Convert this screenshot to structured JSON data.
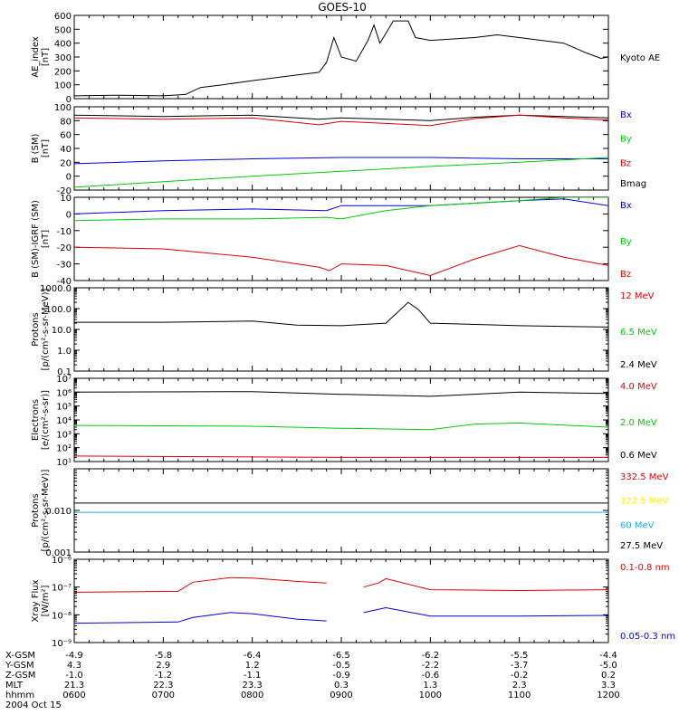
{
  "title": "GOES-10",
  "colors": {
    "black": "#000000",
    "red": "#dd0000",
    "green": "#00cc00",
    "blue": "#0000dd",
    "yellow": "#ffee00",
    "cyan": "#22aadd"
  },
  "footer": {
    "rows": [
      {
        "label": "X-GSM",
        "values": [
          "-4.9",
          "-5.8",
          "-6.4",
          "-6.5",
          "-6.2",
          "-5.5",
          "-4.4"
        ]
      },
      {
        "label": "Y-GSM",
        "values": [
          "4.3",
          "2.9",
          "1.2",
          "-0.5",
          "-2.2",
          "-3.7",
          "-5.0"
        ]
      },
      {
        "label": "Z-GSM",
        "values": [
          "-1.0",
          "-1.2",
          "-1.1",
          "-0.9",
          "-0.6",
          "-0.2",
          "0.2"
        ]
      },
      {
        "label": "MLT",
        "values": [
          "21.3",
          "22.3",
          "23.3",
          "0.3",
          "1.3",
          "2.3",
          "3.3"
        ]
      },
      {
        "label": "hhmm",
        "values": [
          "0600",
          "0700",
          "0800",
          "0900",
          "1000",
          "1100",
          "1200"
        ]
      }
    ],
    "date": "2004 Oct 15"
  },
  "chart_data": [
    {
      "type": "line",
      "ylabel": [
        "AE_index",
        "[nT]"
      ],
      "scale": "linear",
      "ylim": [
        0,
        600
      ],
      "ticks": [
        0,
        100,
        200,
        300,
        400,
        500,
        600
      ],
      "tick_labels": [
        "0",
        "100",
        "200",
        "300",
        "400",
        "500",
        "600"
      ],
      "xlim": [
        "0600",
        "1200"
      ],
      "legend": [
        {
          "name": "Kyoto AE",
          "color": "#000000"
        }
      ],
      "series": [
        {
          "color": "#000000",
          "points": [
            [
              "0600",
              20
            ],
            [
              "0630",
              25
            ],
            [
              "0700",
              20
            ],
            [
              "0715",
              30
            ],
            [
              "0725",
              80
            ],
            [
              "0740",
              100
            ],
            [
              "0800",
              130
            ],
            [
              "0815",
              150
            ],
            [
              "0830",
              170
            ],
            [
              "0845",
              190
            ],
            [
              "0850",
              260
            ],
            [
              "0855",
              440
            ],
            [
              "0900",
              300
            ],
            [
              "0910",
              270
            ],
            [
              "0918",
              420
            ],
            [
              "0922",
              530
            ],
            [
              "0926",
              400
            ],
            [
              "0930",
              470
            ],
            [
              "0935",
              560
            ],
            [
              "0945",
              560
            ],
            [
              "0950",
              440
            ],
            [
              "1000",
              420
            ],
            [
              "1030",
              440
            ],
            [
              "1045",
              460
            ],
            [
              "1100",
              440
            ],
            [
              "1130",
              400
            ],
            [
              "1145",
              330
            ],
            [
              "1155",
              290
            ],
            [
              "1200",
              300
            ]
          ]
        }
      ]
    },
    {
      "type": "line",
      "ylabel": [
        "B (SM)",
        "[nT]"
      ],
      "scale": "linear",
      "ylim": [
        -20,
        100
      ],
      "ticks": [
        -20,
        0,
        20,
        40,
        60,
        80,
        100
      ],
      "tick_labels": [
        "-20",
        "0",
        "20",
        "40",
        "60",
        "80",
        "100"
      ],
      "xlim": [
        "0600",
        "1200"
      ],
      "legend": [
        {
          "name": "Bx",
          "color": "#0000dd"
        },
        {
          "name": "By",
          "color": "#00cc00"
        },
        {
          "name": "Bz",
          "color": "#dd0000"
        },
        {
          "name": "Bmag",
          "color": "#000000"
        }
      ],
      "series": [
        {
          "color": "#000000",
          "points": [
            [
              "0600",
              88
            ],
            [
              "0700",
              86
            ],
            [
              "0800",
              88
            ],
            [
              "0845",
              82
            ],
            [
              "0900",
              84
            ],
            [
              "0930",
              82
            ],
            [
              "1000",
              80
            ],
            [
              "1030",
              85
            ],
            [
              "1100",
              88
            ],
            [
              "1130",
              86
            ],
            [
              "1200",
              84
            ]
          ]
        },
        {
          "color": "#dd0000",
          "points": [
            [
              "0600",
              84
            ],
            [
              "0700",
              82
            ],
            [
              "0800",
              84
            ],
            [
              "0845",
              74
            ],
            [
              "0900",
              79
            ],
            [
              "0930",
              76
            ],
            [
              "1000",
              73
            ],
            [
              "1030",
              83
            ],
            [
              "1100",
              88
            ],
            [
              "1130",
              84
            ],
            [
              "1200",
              81
            ]
          ]
        },
        {
          "color": "#0000dd",
          "points": [
            [
              "0600",
              18
            ],
            [
              "0700",
              22
            ],
            [
              "0800",
              25
            ],
            [
              "0900",
              27
            ],
            [
              "1000",
              27
            ],
            [
              "1100",
              25
            ],
            [
              "1200",
              25
            ]
          ]
        },
        {
          "color": "#00cc00",
          "points": [
            [
              "0600",
              -16
            ],
            [
              "0700",
              -8
            ],
            [
              "0800",
              0
            ],
            [
              "0900",
              7
            ],
            [
              "1000",
              14
            ],
            [
              "1100",
              20
            ],
            [
              "1200",
              27
            ]
          ]
        }
      ]
    },
    {
      "type": "line",
      "ylabel": [
        "B (SM)-IGRF (SM)",
        "[nT]"
      ],
      "scale": "linear",
      "ylim": [
        -40,
        10
      ],
      "ticks": [
        -40,
        -30,
        -20,
        -10,
        0,
        10
      ],
      "tick_labels": [
        "-40",
        "-30",
        "-20",
        "-10",
        "0",
        "10"
      ],
      "xlim": [
        "0600",
        "1200"
      ],
      "legend": [
        {
          "name": "Bx",
          "color": "#0000dd"
        },
        {
          "name": "By",
          "color": "#00cc00"
        },
        {
          "name": "Bz",
          "color": "#dd0000"
        }
      ],
      "series": [
        {
          "color": "#0000dd",
          "points": [
            [
              "0600",
              0
            ],
            [
              "0700",
              2
            ],
            [
              "0800",
              3
            ],
            [
              "0850",
              2
            ],
            [
              "0900",
              5
            ],
            [
              "0930",
              5
            ],
            [
              "1000",
              5
            ],
            [
              "1100",
              8
            ],
            [
              "1130",
              9
            ],
            [
              "1200",
              5
            ]
          ]
        },
        {
          "color": "#00cc00",
          "points": [
            [
              "0600",
              -4
            ],
            [
              "0700",
              -3
            ],
            [
              "0800",
              -3
            ],
            [
              "0850",
              -2
            ],
            [
              "0900",
              -3
            ],
            [
              "0930",
              2
            ],
            [
              "1000",
              5
            ],
            [
              "1100",
              8
            ],
            [
              "1130",
              10
            ],
            [
              "1200",
              10
            ]
          ]
        },
        {
          "color": "#dd0000",
          "points": [
            [
              "0600",
              -20
            ],
            [
              "0700",
              -21
            ],
            [
              "0800",
              -26
            ],
            [
              "0845",
              -32
            ],
            [
              "0852",
              -34
            ],
            [
              "0900",
              -30
            ],
            [
              "0930",
              -31
            ],
            [
              "1000",
              -37
            ],
            [
              "1030",
              -27
            ],
            [
              "1100",
              -19
            ],
            [
              "1130",
              -26
            ],
            [
              "1200",
              -31
            ]
          ]
        }
      ]
    },
    {
      "type": "line",
      "ylabel": [
        "Protons",
        "[p/(cm²-s-sr-MeV)]"
      ],
      "scale": "log",
      "ylim": [
        0.1,
        1000
      ],
      "ticks": [
        0.1,
        1,
        10,
        100,
        1000
      ],
      "tick_labels": [
        "0.1",
        "1.0",
        "10.0",
        "100.0",
        "1000.0"
      ],
      "xlim": [
        "0600",
        "1200"
      ],
      "legend": [
        {
          "name": "12 MeV",
          "color": "#dd0000"
        },
        {
          "name": "6.5 MeV",
          "color": "#00cc00"
        },
        {
          "name": "2.4 MeV",
          "color": "#000000"
        }
      ],
      "series": [
        {
          "color": "#000000",
          "points": [
            [
              "0600",
              22
            ],
            [
              "0700",
              22
            ],
            [
              "0800",
              25
            ],
            [
              "0830",
              16
            ],
            [
              "0900",
              15
            ],
            [
              "0930",
              20
            ],
            [
              "0945",
              200
            ],
            [
              "0952",
              90
            ],
            [
              "1000",
              20
            ],
            [
              "1100",
              15
            ],
            [
              "1200",
              13
            ]
          ]
        }
      ]
    },
    {
      "type": "line",
      "ylabel": [
        "Electrons",
        "[e/(cm²-s-sr)]"
      ],
      "scale": "log",
      "ylim": [
        10,
        10000000
      ],
      "ticks": [
        10,
        100,
        1000,
        10000,
        100000,
        1000000,
        10000000
      ],
      "tick_labels": [
        "10¹",
        "10²",
        "10³",
        "10⁴",
        "10⁵",
        "10⁶",
        "10⁷"
      ],
      "xlim": [
        "0600",
        "1200"
      ],
      "legend": [
        {
          "name": "4.0 MeV",
          "color": "#dd0000"
        },
        {
          "name": "2.0 MeV",
          "color": "#00cc00"
        },
        {
          "name": "0.6 MeV",
          "color": "#000000"
        }
      ],
      "series": [
        {
          "color": "#000000",
          "points": [
            [
              "0600",
              1000000
            ],
            [
              "0800",
              1100000
            ],
            [
              "0900",
              700000
            ],
            [
              "1000",
              500000
            ],
            [
              "1100",
              1000000
            ],
            [
              "1200",
              800000
            ]
          ]
        },
        {
          "color": "#00cc00",
          "points": [
            [
              "0600",
              4000
            ],
            [
              "0800",
              3500
            ],
            [
              "0900",
              2500
            ],
            [
              "1000",
              2000
            ],
            [
              "1030",
              5000
            ],
            [
              "1100",
              6000
            ],
            [
              "1200",
              3000
            ]
          ]
        },
        {
          "color": "#dd0000",
          "points": [
            [
              "0600",
              25
            ],
            [
              "0900",
              20
            ],
            [
              "1200",
              20
            ]
          ]
        }
      ]
    },
    {
      "type": "line",
      "ylabel": [
        "Protons",
        "[p/(cm²-s-sr-MeV)]"
      ],
      "scale": "log",
      "ylim": [
        0.001,
        0.1
      ],
      "ticks": [
        0.001,
        0.01
      ],
      "tick_labels": [
        "0.001",
        "0.010"
      ],
      "xlim": [
        "0600",
        "1200"
      ],
      "legend": [
        {
          "name": "332.5 MeV",
          "color": "#dd0000"
        },
        {
          "name": "122.5 MeV",
          "color": "#ffee00"
        },
        {
          "name": "60 MeV",
          "color": "#22aadd"
        },
        {
          "name": "27.5 MeV",
          "color": "#000000"
        }
      ],
      "series": [
        {
          "color": "#000000",
          "points": [
            [
              "0600",
              0.015
            ],
            [
              "1200",
              0.015
            ]
          ]
        },
        {
          "color": "#22aadd",
          "points": [
            [
              "0600",
              0.009
            ],
            [
              "1200",
              0.009
            ]
          ]
        }
      ]
    },
    {
      "type": "line",
      "ylabel": [
        "Xray Flux",
        "[W/m²]"
      ],
      "scale": "log",
      "ylim": [
        1e-09,
        1e-06
      ],
      "ticks": [
        1e-09,
        1e-08,
        1e-07,
        1e-06
      ],
      "tick_labels": [
        "10⁻⁹",
        "10⁻⁸",
        "10⁻⁷",
        "10⁻⁶"
      ],
      "xlim": [
        "0600",
        "1200"
      ],
      "legend": [
        {
          "name": "0.1-0.8 nm",
          "color": "#dd0000"
        },
        {
          "name": "0.05-0.3 nm",
          "color": "#0000dd"
        }
      ],
      "series": [
        {
          "color": "#dd0000",
          "segments": [
            [
              [
                "0600",
                6.5e-08
              ],
              [
                "0710",
                7e-08
              ],
              [
                "0720",
                1.5e-07
              ],
              [
                "0745",
                2.2e-07
              ],
              [
                "0800",
                2.1e-07
              ],
              [
                "0830",
                1.6e-07
              ],
              [
                "0850",
                1.4e-07
              ]
            ],
            [
              [
                "0915",
                1e-07
              ],
              [
                "0925",
                1.4e-07
              ],
              [
                "0930",
                2e-07
              ],
              [
                "1000",
                8e-08
              ],
              [
                "1100",
                7.5e-08
              ],
              [
                "1200",
                8e-08
              ]
            ]
          ]
        },
        {
          "color": "#0000dd",
          "segments": [
            [
              [
                "0600",
                5e-09
              ],
              [
                "0710",
                5.5e-09
              ],
              [
                "0720",
                8e-09
              ],
              [
                "0745",
                1.2e-08
              ],
              [
                "0800",
                1.1e-08
              ],
              [
                "0830",
                7e-09
              ],
              [
                "0850",
                6e-09
              ]
            ],
            [
              [
                "0915",
                1.2e-08
              ],
              [
                "0930",
                1.8e-08
              ],
              [
                "1000",
                9e-09
              ],
              [
                "1100",
                9e-09
              ],
              [
                "1200",
                9.5e-09
              ]
            ]
          ]
        }
      ]
    }
  ]
}
